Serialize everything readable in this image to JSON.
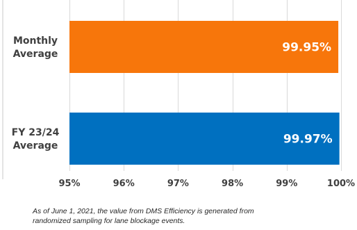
{
  "chart_data": {
    "type": "bar",
    "orientation": "horizontal",
    "categories": [
      [
        "Monthly",
        "Average"
      ],
      [
        "FY 23/24",
        "Average"
      ]
    ],
    "values": [
      99.95,
      99.97
    ],
    "data_labels": [
      "99.95%",
      "99.97%"
    ],
    "bar_colors": [
      "#f7760b",
      "#0070c0"
    ],
    "xlim": [
      95,
      100
    ],
    "xticks": [
      95,
      96,
      97,
      98,
      99,
      100
    ],
    "tick_labels": [
      "95%",
      "96%",
      "97%",
      "98%",
      "99%",
      "100%"
    ],
    "grid": true,
    "legend": "none"
  },
  "footnote": {
    "line1": "As of June 1, 2021, the value from DMS Efficiency is generated from",
    "line2": "randomized sampling for lane blockage events."
  }
}
